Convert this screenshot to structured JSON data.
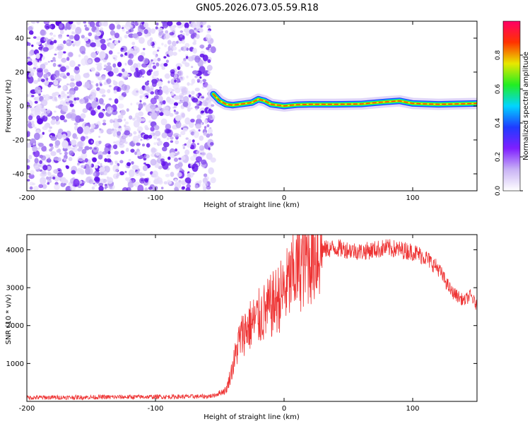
{
  "figure": {
    "title": "GN05.2026.073.05.59.R18"
  },
  "chart_data": [
    {
      "type": "heatmap",
      "id": "spectrogram",
      "title": "",
      "xlabel": "Height of straight line (km)",
      "ylabel": "Frequency (Hz)",
      "xlim": [
        -200,
        150
      ],
      "ylim": [
        -50,
        50
      ],
      "x_ticks": [
        -200,
        -100,
        0,
        100
      ],
      "y_ticks": [
        -40,
        -20,
        0,
        20,
        40
      ],
      "grid": false,
      "noise_region_x": [
        -200,
        -55
      ],
      "signal_trace": {
        "x": [
          -55,
          -50,
          -45,
          -40,
          -35,
          -30,
          -25,
          -20,
          -15,
          -10,
          -5,
          0,
          10,
          20,
          40,
          60,
          80,
          90,
          100,
          120,
          150
        ],
        "freq": [
          7,
          3,
          1,
          0.5,
          1,
          1.5,
          2,
          4,
          3,
          1,
          0.5,
          0,
          0.8,
          1,
          1,
          1.2,
          2.5,
          3,
          1.5,
          1,
          1.5
        ]
      },
      "colorbar": {
        "label": "Normalized spectral amplitude",
        "range": [
          0,
          1
        ],
        "ticks": [
          "0.0",
          "0.2",
          "0.4",
          "0.6",
          "0.8"
        ],
        "tick_values": [
          0,
          0.2,
          0.4,
          0.6,
          0.8
        ],
        "colormap": [
          "#ffffff",
          "#c9b3f5",
          "#7f1fff",
          "#1f3bff",
          "#00d5ff",
          "#22ee22",
          "#e8e800",
          "#ff3300",
          "#ff0066"
        ]
      }
    },
    {
      "type": "line",
      "id": "snr",
      "title": "",
      "xlabel": "Height of straight line (km)",
      "ylabel": "SNR (10 * v/v)",
      "xlim": [
        -200,
        150
      ],
      "ylim": [
        0,
        4400
      ],
      "x_ticks": [
        -200,
        -100,
        0,
        100
      ],
      "y_ticks": [
        1000,
        2000,
        3000,
        4000
      ],
      "grid": false,
      "series": [
        {
          "name": "SNR",
          "color": "#ee3333",
          "x": [
            -200,
            -150,
            -100,
            -60,
            -55,
            -45,
            -40,
            -35,
            -30,
            -20,
            -10,
            0,
            10,
            20,
            30,
            40,
            50,
            60,
            70,
            80,
            90,
            100,
            110,
            120,
            130,
            140,
            145,
            150
          ],
          "y": [
            100,
            110,
            120,
            130,
            150,
            300,
            900,
            1600,
            1900,
            2200,
            2500,
            2900,
            3500,
            3850,
            4000,
            4050,
            4000,
            3950,
            4000,
            4050,
            4000,
            3950,
            3800,
            3500,
            2900,
            2650,
            2800,
            2500
          ]
        }
      ]
    }
  ]
}
